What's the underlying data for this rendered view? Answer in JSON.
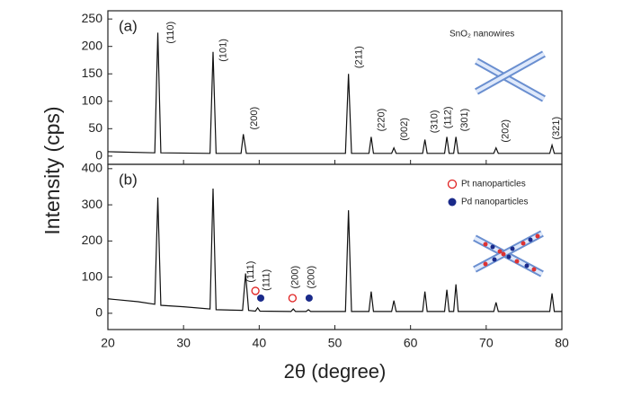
{
  "chart_data": [
    {
      "type": "line",
      "panel": "(a)",
      "ylabel": "Intensity (cps)",
      "legend_text": "SnO₂ nanowires",
      "xlim": [
        20,
        80
      ],
      "xticks": [
        20,
        30,
        40,
        50,
        60,
        70,
        80
      ],
      "ylim": [
        -15,
        265
      ],
      "yticks": [
        0,
        50,
        100,
        150,
        200,
        250
      ],
      "series": [
        {
          "color": "#111111",
          "x": [
            20,
            26.2,
            26.6,
            27.0,
            33.5,
            33.9,
            34.3,
            37.6,
            37.9,
            38.3,
            51.4,
            51.8,
            52.2,
            54.5,
            54.8,
            55.1,
            57.5,
            57.8,
            58.1,
            61.6,
            61.9,
            62.2,
            64.5,
            64.8,
            65.1,
            65.7,
            66.0,
            66.3,
            71.0,
            71.3,
            71.6,
            78.4,
            78.7,
            79.0,
            80
          ],
          "values": [
            8,
            6,
            225,
            6,
            5,
            190,
            5,
            5,
            40,
            5,
            5,
            150,
            5,
            5,
            35,
            5,
            5,
            15,
            5,
            5,
            30,
            5,
            5,
            35,
            5,
            5,
            35,
            5,
            5,
            15,
            5,
            5,
            20,
            5,
            5
          ]
        }
      ],
      "annotations": [
        {
          "text": "(110)",
          "x": 28.3,
          "y": 205,
          "color": "#111111"
        },
        {
          "text": "(101)",
          "x": 35.3,
          "y": 172,
          "color": "#111111"
        },
        {
          "text": "(200)",
          "x": 39.4,
          "y": 48,
          "color": "#111111"
        },
        {
          "text": "(211)",
          "x": 53.2,
          "y": 160,
          "color": "#111111"
        },
        {
          "text": "(220)",
          "x": 56.2,
          "y": 45,
          "color": "#111111"
        },
        {
          "text": "(002)",
          "x": 59.2,
          "y": 28,
          "color": "#111111"
        },
        {
          "text": "(310)",
          "x": 63.2,
          "y": 42,
          "color": "#111111"
        },
        {
          "text": "(112)",
          "x": 65.0,
          "y": 50,
          "color": "#111111"
        },
        {
          "text": "(301)",
          "x": 67.2,
          "y": 45,
          "color": "#111111"
        },
        {
          "text": "(202)",
          "x": 72.6,
          "y": 25,
          "color": "#111111"
        },
        {
          "text": "(321)",
          "x": 79.3,
          "y": 30,
          "color": "#111111"
        }
      ]
    },
    {
      "type": "line",
      "panel": "(b)",
      "xlabel": "2θ (degree)",
      "xlim": [
        20,
        80
      ],
      "xticks": [
        20,
        30,
        40,
        50,
        60,
        70,
        80
      ],
      "ylim": [
        -45,
        412
      ],
      "yticks": [
        0,
        100,
        200,
        300,
        400
      ],
      "series": [
        {
          "color": "#111111",
          "x": [
            20,
            24,
            26.2,
            26.6,
            27.0,
            30,
            33.5,
            33.9,
            34.3,
            37.8,
            38.2,
            38.6,
            39.5,
            39.8,
            40.1,
            44.2,
            44.5,
            44.8,
            46.2,
            46.5,
            46.8,
            51.4,
            51.8,
            52.2,
            54.5,
            54.8,
            55.1,
            57.5,
            57.8,
            58.1,
            61.6,
            61.9,
            62.2,
            64.5,
            64.8,
            65.1,
            65.7,
            66.0,
            66.3,
            71.0,
            71.3,
            71.6,
            78.4,
            78.7,
            79.0,
            80
          ],
          "values": [
            40,
            32,
            25,
            320,
            22,
            18,
            12,
            345,
            10,
            8,
            110,
            8,
            6,
            15,
            6,
            5,
            12,
            5,
            5,
            10,
            5,
            5,
            285,
            5,
            5,
            60,
            5,
            5,
            35,
            5,
            5,
            60,
            5,
            5,
            65,
            5,
            5,
            80,
            5,
            5,
            30,
            5,
            5,
            55,
            5,
            5
          ]
        },
        {
          "name": "Pt nanoparticles",
          "color": "#e02020",
          "marker": "open",
          "x": [
            39.5,
            44.4
          ],
          "values": [
            62,
            42
          ]
        },
        {
          "name": "Pd nanoparticles",
          "color": "#1a2a8a",
          "marker": "filled",
          "x": [
            40.2,
            46.6
          ],
          "values": [
            42,
            42
          ]
        }
      ],
      "annotations": [
        {
          "text": "(111)",
          "x": 38.9,
          "y": 85,
          "color": "#e02020"
        },
        {
          "text": "(111)",
          "x": 41.0,
          "y": 62,
          "color": "#1a2a8a"
        },
        {
          "text": "(200)",
          "x": 44.8,
          "y": 68,
          "color": "#e02020"
        },
        {
          "text": "(200)",
          "x": 46.9,
          "y": 68,
          "color": "#1a2a8a"
        }
      ]
    }
  ]
}
